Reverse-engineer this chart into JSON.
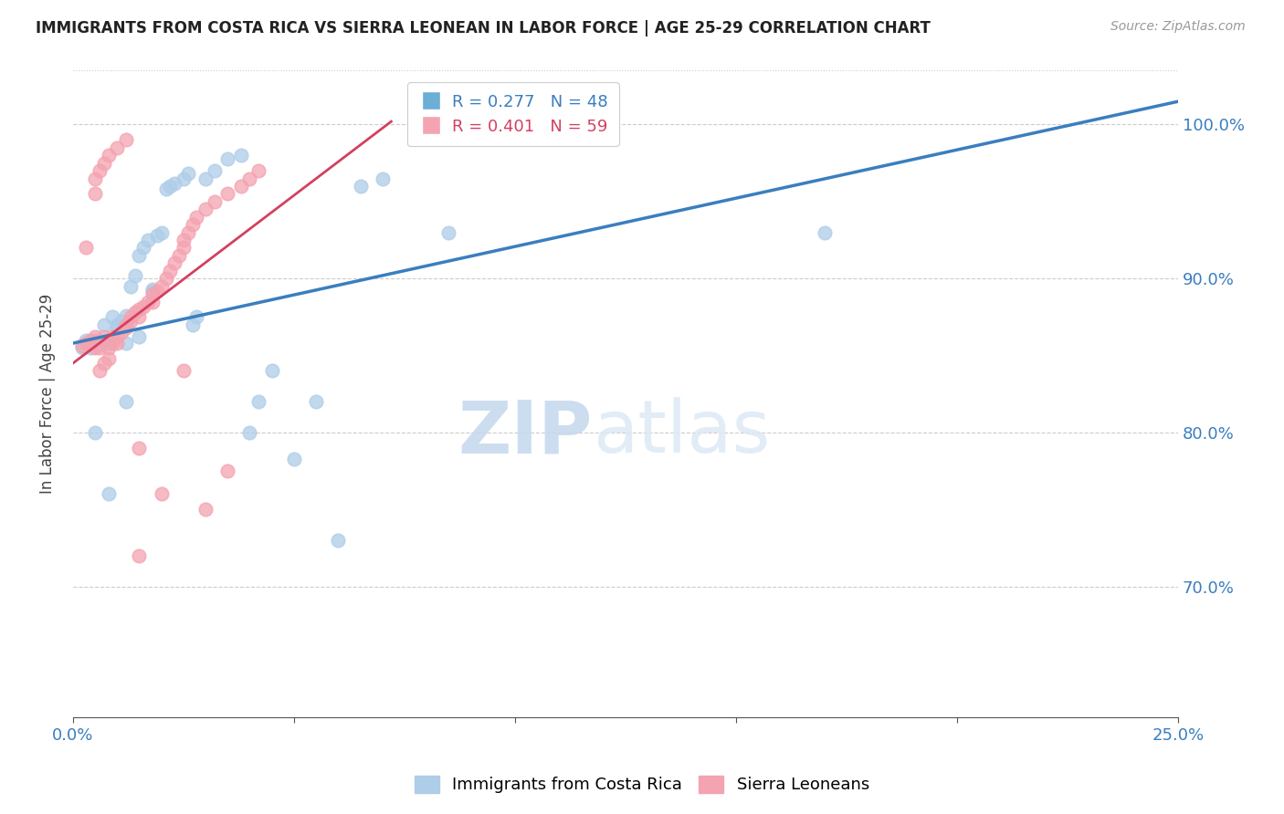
{
  "title": "IMMIGRANTS FROM COSTA RICA VS SIERRA LEONEAN IN LABOR FORCE | AGE 25-29 CORRELATION CHART",
  "source": "Source: ZipAtlas.com",
  "ylabel": "In Labor Force | Age 25-29",
  "ytick_labels": [
    "100.0%",
    "90.0%",
    "80.0%",
    "70.0%"
  ],
  "xlim": [
    0.0,
    0.25
  ],
  "ylim": [
    0.615,
    1.035
  ],
  "yticks": [
    1.0,
    0.9,
    0.8,
    0.7
  ],
  "xticks": [
    0.0,
    0.05,
    0.1,
    0.15,
    0.2,
    0.25
  ],
  "xtick_labels": [
    "0.0%",
    "",
    "",
    "",
    "",
    "25.0%"
  ],
  "legend1_text": "R = 0.277   N = 48",
  "legend2_text": "R = 0.401   N = 59",
  "legend1_color": "#6baed6",
  "legend2_color": "#f4a3b0",
  "scatter_blue_color": "#aecde8",
  "scatter_pink_color": "#f4a3b0",
  "line_blue_color": "#3a7ebf",
  "line_pink_color": "#d44060",
  "watermark_zip": "ZIP",
  "watermark_atlas": "atlas",
  "blue_x": [
    0.002,
    0.003,
    0.004,
    0.005,
    0.006,
    0.007,
    0.008,
    0.008,
    0.009,
    0.01,
    0.01,
    0.011,
    0.012,
    0.012,
    0.013,
    0.014,
    0.015,
    0.015,
    0.016,
    0.017,
    0.018,
    0.018,
    0.019,
    0.02,
    0.021,
    0.022,
    0.023,
    0.025,
    0.026,
    0.027,
    0.028,
    0.03,
    0.032,
    0.035,
    0.038,
    0.04,
    0.042,
    0.045,
    0.05,
    0.055,
    0.06,
    0.065,
    0.07,
    0.085,
    0.17,
    0.005,
    0.008,
    0.012
  ],
  "blue_y": [
    0.855,
    0.86,
    0.855,
    0.86,
    0.857,
    0.87,
    0.86,
    0.858,
    0.875,
    0.87,
    0.868,
    0.872,
    0.858,
    0.876,
    0.895,
    0.902,
    0.915,
    0.862,
    0.92,
    0.925,
    0.892,
    0.893,
    0.928,
    0.93,
    0.958,
    0.96,
    0.962,
    0.965,
    0.968,
    0.87,
    0.875,
    0.965,
    0.97,
    0.978,
    0.98,
    0.8,
    0.82,
    0.84,
    0.783,
    0.82,
    0.73,
    0.96,
    0.965,
    0.93,
    0.93,
    0.8,
    0.76,
    0.82
  ],
  "pink_x": [
    0.002,
    0.003,
    0.004,
    0.004,
    0.005,
    0.005,
    0.006,
    0.006,
    0.007,
    0.007,
    0.008,
    0.008,
    0.009,
    0.009,
    0.01,
    0.01,
    0.011,
    0.012,
    0.012,
    0.013,
    0.013,
    0.014,
    0.015,
    0.015,
    0.016,
    0.017,
    0.018,
    0.018,
    0.019,
    0.02,
    0.021,
    0.022,
    0.023,
    0.024,
    0.025,
    0.025,
    0.026,
    0.027,
    0.028,
    0.03,
    0.032,
    0.035,
    0.038,
    0.04,
    0.042,
    0.015,
    0.02,
    0.025,
    0.03,
    0.035,
    0.005,
    0.005,
    0.006,
    0.007,
    0.008,
    0.01,
    0.012,
    0.003,
    0.015
  ],
  "pink_y": [
    0.856,
    0.858,
    0.86,
    0.858,
    0.855,
    0.862,
    0.84,
    0.855,
    0.845,
    0.862,
    0.848,
    0.855,
    0.858,
    0.862,
    0.862,
    0.858,
    0.865,
    0.868,
    0.87,
    0.872,
    0.875,
    0.878,
    0.88,
    0.875,
    0.882,
    0.885,
    0.89,
    0.885,
    0.892,
    0.895,
    0.9,
    0.905,
    0.91,
    0.915,
    0.92,
    0.925,
    0.93,
    0.935,
    0.94,
    0.945,
    0.95,
    0.955,
    0.96,
    0.965,
    0.97,
    0.79,
    0.76,
    0.84,
    0.75,
    0.775,
    0.955,
    0.965,
    0.97,
    0.975,
    0.98,
    0.985,
    0.99,
    0.92,
    0.72
  ],
  "blue_line_x": [
    0.0,
    0.25
  ],
  "blue_line_y": [
    0.858,
    1.015
  ],
  "pink_line_x": [
    0.0,
    0.072
  ],
  "pink_line_y": [
    0.845,
    1.002
  ],
  "grid_color": "#cccccc",
  "top_border_color": "#cccccc"
}
